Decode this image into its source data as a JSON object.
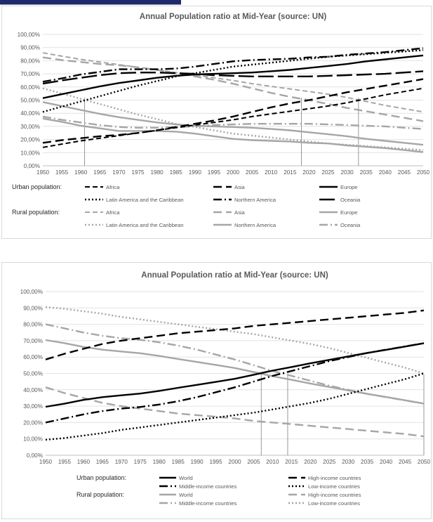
{
  "chart_data": [
    {
      "type": "line",
      "title": "Annual Population ratio at Mid-Year (source: UN)",
      "xlabel": "",
      "ylabel": "",
      "ylim": [
        0,
        100
      ],
      "y_ticks": [
        "0,00%",
        "10,00%",
        "20,00%",
        "30,00%",
        "40,00%",
        "50,00%",
        "60,00%",
        "70,00%",
        "80,00%",
        "90,00%",
        "100,00%"
      ],
      "x": [
        1950,
        1955,
        1960,
        1965,
        1970,
        1975,
        1980,
        1985,
        1990,
        1995,
        2000,
        2005,
        2010,
        2015,
        2020,
        2025,
        2030,
        2035,
        2040,
        2045,
        2050
      ],
      "grid": true,
      "legend_position": "bottom",
      "vertical_markers": [
        1961,
        2018,
        2033
      ],
      "legend_groups": [
        {
          "label": "Urban population:",
          "entries": [
            {
              "name": "Africa",
              "color": "#000000",
              "dash": "7,4",
              "width": 2
            },
            {
              "name": "Asia",
              "color": "#000000",
              "dash": "12,6",
              "width": 2.4
            },
            {
              "name": "Europe",
              "color": "#000000",
              "dash": "",
              "width": 2.4
            },
            {
              "name": "Latin America and the Caribbean",
              "color": "#000000",
              "dash": "2,3",
              "width": 2.4
            },
            {
              "name": "Northern America",
              "color": "#000000",
              "dash": "12,4,2,4",
              "width": 2.4
            },
            {
              "name": "Oceania",
              "color": "#000000",
              "dash": "22,6",
              "width": 2.4
            }
          ]
        },
        {
          "label": "Rural population:",
          "entries": [
            {
              "name": "Africa",
              "color": "#a6a6a6",
              "dash": "7,4",
              "width": 2
            },
            {
              "name": "Asia",
              "color": "#a6a6a6",
              "dash": "12,6",
              "width": 2.4
            },
            {
              "name": "Europe",
              "color": "#a6a6a6",
              "dash": "",
              "width": 2.4
            },
            {
              "name": "Latin America and the Caribbean",
              "color": "#a6a6a6",
              "dash": "2,3",
              "width": 2.4
            },
            {
              "name": "Northern America",
              "color": "#a6a6a6",
              "dash": "",
              "width": 2.4
            },
            {
              "name": "Oceania",
              "color": "#a6a6a6",
              "dash": "12,4,2,4",
              "width": 2.4
            }
          ]
        }
      ],
      "series": [
        {
          "name": "Urban population: Africa",
          "values": [
            14,
            16.5,
            19,
            21,
            23,
            25,
            27,
            29,
            31,
            33,
            35,
            37.5,
            39.5,
            41.5,
            43.5,
            45.5,
            48,
            51,
            54,
            56.5,
            59
          ]
        },
        {
          "name": "Urban population: Asia",
          "values": [
            17.5,
            19.5,
            21,
            22.5,
            23.5,
            25,
            27,
            29.5,
            32,
            34.5,
            37.5,
            41,
            44.5,
            47.5,
            50,
            53,
            56,
            58.5,
            61,
            63.5,
            66
          ]
        },
        {
          "name": "Urban population: Europe",
          "values": [
            51.5,
            54.5,
            57.5,
            60.5,
            63,
            65,
            67,
            68.5,
            69.5,
            70,
            70.5,
            71,
            72,
            73,
            74.5,
            76,
            77.5,
            79.5,
            81,
            82.5,
            84
          ]
        },
        {
          "name": "Urban population: Latin America and the Caribbean",
          "values": [
            41,
            45,
            49,
            53,
            57,
            61,
            64.5,
            68,
            70.5,
            73,
            75.5,
            77,
            78.5,
            80,
            81.5,
            83,
            84,
            85,
            86,
            87,
            88
          ]
        },
        {
          "name": "Urban population: Northern America",
          "values": [
            64,
            66.5,
            69.5,
            71.5,
            73.5,
            73.5,
            73.5,
            74,
            75.5,
            77.5,
            79.5,
            80.5,
            81,
            81.5,
            82.5,
            83,
            84.5,
            85.5,
            86.5,
            88,
            89.5
          ]
        },
        {
          "name": "Urban population: Oceania",
          "values": [
            62.5,
            65,
            67,
            69,
            70.5,
            71,
            71,
            70.5,
            70,
            69,
            68.5,
            68,
            68,
            68,
            68,
            68.5,
            69,
            69.5,
            70,
            71,
            72
          ]
        },
        {
          "name": "Rural population: Africa",
          "values": [
            86,
            83.5,
            81,
            79,
            77,
            75,
            73,
            71,
            69,
            67,
            65,
            62.5,
            60.5,
            58.5,
            56.5,
            54.5,
            52,
            49,
            46,
            43.5,
            41
          ]
        },
        {
          "name": "Rural population: Asia",
          "values": [
            82.5,
            80.5,
            79,
            77.5,
            76.5,
            75,
            73,
            70.5,
            68,
            65.5,
            62.5,
            59,
            55.5,
            52.5,
            50,
            47,
            44,
            41.5,
            39,
            36.5,
            34
          ]
        },
        {
          "name": "Rural population: Europe",
          "values": [
            48.5,
            45.5,
            42.5,
            39.5,
            37,
            35,
            33,
            31.5,
            30.5,
            30,
            29.5,
            29,
            28,
            27,
            25.5,
            24,
            22.5,
            20.5,
            19,
            17.5,
            16
          ]
        },
        {
          "name": "Rural population: Latin America and the Caribbean",
          "values": [
            59,
            55,
            51,
            47,
            43,
            39,
            35.5,
            32,
            29.5,
            27,
            24.5,
            23,
            21.5,
            20,
            18.5,
            17,
            16,
            15,
            14,
            13,
            12
          ]
        },
        {
          "name": "Rural population: Northern America",
          "values": [
            36,
            33.5,
            30.5,
            28.5,
            26.5,
            26.5,
            26.5,
            26,
            24.5,
            22.5,
            20.5,
            19.5,
            19,
            18.5,
            17.5,
            17,
            15.5,
            14.5,
            13.5,
            12,
            10.5
          ]
        },
        {
          "name": "Rural population: Oceania",
          "values": [
            37.5,
            35,
            33,
            31,
            29.5,
            29,
            29,
            29.5,
            30,
            31,
            31.5,
            32,
            32,
            32,
            32,
            31.5,
            31,
            30.5,
            30,
            29,
            28
          ]
        }
      ]
    },
    {
      "type": "line",
      "title": "Annual Population ratio at Mid-Year (source: UN)",
      "xlabel": "",
      "ylabel": "",
      "ylim": [
        0,
        100
      ],
      "y_ticks": [
        "0,00%",
        "10,00%",
        "20,00%",
        "30,00%",
        "40,00%",
        "50,00%",
        "60,00%",
        "70,00%",
        "80,00%",
        "90,00%",
        "100,00%"
      ],
      "x": [
        1950,
        1955,
        1960,
        1965,
        1970,
        1975,
        1980,
        1985,
        1990,
        1995,
        2000,
        2005,
        2010,
        2015,
        2020,
        2025,
        2030,
        2035,
        2040,
        2045,
        2050
      ],
      "grid": true,
      "legend_position": "bottom",
      "vertical_markers": [
        2007,
        2014,
        2050
      ],
      "legend_groups": [
        {
          "label": "Urban population:",
          "entries": [
            {
              "name": "World",
              "color": "#000000",
              "dash": "",
              "width": 2.4
            },
            {
              "name": "High-income countries",
              "color": "#000000",
              "dash": "12,6",
              "width": 2.4
            },
            {
              "name": "Middle-income countries",
              "color": "#000000",
              "dash": "12,4,2,4",
              "width": 2.4
            },
            {
              "name": "Low-income countries",
              "color": "#000000",
              "dash": "2,3",
              "width": 2.4
            }
          ]
        },
        {
          "label": "Rural population:",
          "entries": [
            {
              "name": "World",
              "color": "#a6a6a6",
              "dash": "",
              "width": 2.4
            },
            {
              "name": "High-income countries",
              "color": "#a6a6a6",
              "dash": "12,6",
              "width": 2.4
            },
            {
              "name": "Middle-income countries",
              "color": "#a6a6a6",
              "dash": "12,4,2,4",
              "width": 2.4
            },
            {
              "name": "Low-income countries",
              "color": "#a6a6a6",
              "dash": "2,3",
              "width": 2.4
            }
          ]
        }
      ],
      "series": [
        {
          "name": "Urban population: World",
          "values": [
            29.6,
            31.5,
            33.8,
            35.5,
            36.6,
            37.7,
            39.3,
            41.2,
            43,
            44.8,
            46.7,
            49.2,
            51.7,
            53.9,
            56.2,
            58.3,
            60.4,
            62.5,
            64.4,
            66.4,
            68.4
          ]
        },
        {
          "name": "Urban population: High-income countries",
          "values": [
            58.5,
            62,
            65,
            68,
            70,
            71.5,
            73,
            74.5,
            75.5,
            76.5,
            77.5,
            79,
            80,
            81,
            82,
            83,
            84,
            85,
            86,
            87,
            88.5
          ]
        },
        {
          "name": "Urban population: Middle-income countries",
          "values": [
            20,
            22.5,
            25,
            27,
            28.5,
            29.5,
            31,
            33,
            35.5,
            38.5,
            41.5,
            45,
            48.5,
            51.5,
            54.5,
            57.5,
            60,
            62.5,
            64.5,
            66.5,
            68.5
          ]
        },
        {
          "name": "Urban population: Low-income countries",
          "values": [
            9.5,
            10.5,
            12,
            13.5,
            15.5,
            17,
            18.5,
            20,
            21.5,
            23,
            24.5,
            26,
            28,
            30,
            32,
            34.5,
            37.5,
            40.5,
            43.5,
            46.5,
            50
          ]
        },
        {
          "name": "Rural population: World",
          "values": [
            70.4,
            68.5,
            66.2,
            64.5,
            63.4,
            62.3,
            60.7,
            58.8,
            57,
            55.2,
            53.3,
            50.8,
            48.3,
            46.1,
            43.8,
            41.7,
            39.6,
            37.5,
            35.6,
            33.6,
            31.6
          ]
        },
        {
          "name": "Rural population: High-income countries",
          "values": [
            41.5,
            38,
            35,
            32,
            30,
            28.5,
            27,
            25.5,
            24.5,
            23.5,
            22.5,
            21,
            20,
            19,
            18,
            17,
            16,
            15,
            14,
            13,
            11.5
          ]
        },
        {
          "name": "Rural population: Middle-income countries",
          "values": [
            80,
            77.5,
            75,
            73,
            71.5,
            70.5,
            69,
            67,
            64.5,
            61.5,
            58.5,
            55,
            51.5,
            48.5,
            45.5,
            42.5,
            40,
            37.5,
            35.5,
            33.5,
            31.5
          ]
        },
        {
          "name": "Rural population: Low-income countries",
          "values": [
            90.5,
            89.5,
            88,
            86.5,
            84.5,
            83,
            81.5,
            80,
            78.5,
            77,
            75.5,
            74,
            72,
            70,
            68,
            65.5,
            62.5,
            59.5,
            56.5,
            53.5,
            50
          ]
        }
      ]
    }
  ]
}
